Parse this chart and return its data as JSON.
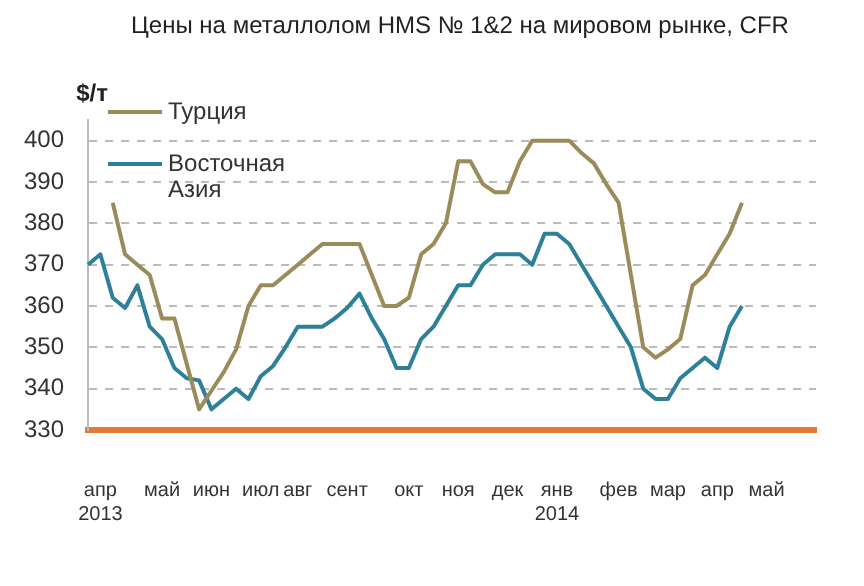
{
  "chart_data": {
    "type": "line",
    "title": "Цены на металлолом HMS № 1&2 на мировом рынке, CFR",
    "ylabel": "$/т",
    "categories": [
      null,
      "апр\n2013",
      null,
      null,
      null,
      null,
      "май",
      null,
      null,
      null,
      "июн",
      null,
      null,
      null,
      "июл",
      null,
      null,
      "авг",
      null,
      null,
      null,
      "сент",
      null,
      null,
      null,
      null,
      "окт",
      null,
      null,
      null,
      "ноя",
      null,
      null,
      null,
      "дек",
      null,
      null,
      null,
      "янв\n2014",
      null,
      null,
      null,
      null,
      "фев",
      null,
      null,
      null,
      "мар",
      null,
      null,
      null,
      "апр",
      null,
      null,
      null,
      "май",
      null,
      null,
      null,
      null
    ],
    "series": [
      {
        "name": "Турция",
        "color": "#9a8c5a",
        "values": [
          null,
          null,
          385,
          372.5,
          370,
          367.5,
          357,
          357,
          346,
          335,
          339.5,
          344,
          349.5,
          360,
          365,
          365,
          367.5,
          370,
          372.5,
          375,
          375,
          375,
          375,
          367.5,
          360,
          360,
          362,
          372.5,
          375,
          380,
          395,
          395,
          389.5,
          387.5,
          387.5,
          395,
          400,
          400,
          400,
          400,
          397,
          394.5,
          389.5,
          385,
          367.5,
          350,
          347.5,
          349.5,
          352,
          365,
          367.5,
          372.5,
          377.5,
          385,
          null,
          null,
          null,
          null,
          null,
          null
        ]
      },
      {
        "name": "Восточная Азия",
        "color": "#2e7f9a",
        "values": [
          370,
          372.5,
          362,
          359.5,
          365,
          355,
          352,
          345,
          342.5,
          342,
          335,
          337.5,
          340,
          337.5,
          343,
          345.5,
          350,
          355,
          355,
          355,
          357,
          359.5,
          363,
          357,
          352,
          345,
          345,
          352,
          355,
          360,
          365,
          365,
          370,
          372.5,
          372.5,
          372.5,
          370,
          377.5,
          377.5,
          375,
          370,
          365,
          360,
          355,
          350,
          340,
          337.5,
          337.5,
          342.5,
          345,
          347.5,
          345,
          355,
          360,
          null,
          null,
          null,
          null,
          null,
          null
        ]
      }
    ],
    "ylim": [
      330,
      405
    ],
    "yticks": [
      330,
      340,
      350,
      360,
      370,
      380,
      390,
      400
    ],
    "grid": "y",
    "legend": "top left",
    "marker": "none",
    "line_style": "solid"
  }
}
